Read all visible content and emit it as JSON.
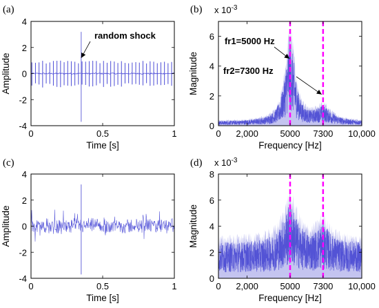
{
  "chart_data": [
    {
      "panel": "(a)",
      "type": "line",
      "xlabel": "Time [s]",
      "ylabel": "Amplitude",
      "xlim": [
        0,
        1
      ],
      "ylim": [
        -4,
        4
      ],
      "xticks": [
        0,
        0.5,
        1
      ],
      "xtick_labels": [
        "0",
        "0.5",
        "1"
      ],
      "yticks": [
        -4,
        -2,
        0,
        2,
        4
      ],
      "ytick_labels": [
        "-4",
        "-2",
        "0",
        "2",
        "4"
      ],
      "series": [
        {
          "impulse_period_s": 0.025,
          "impulse_amplitude": 0.9,
          "noise_amplitude": 0.05,
          "shock": {
            "x": 0.35,
            "max": 3.2,
            "min": -3.7
          }
        }
      ],
      "annotations": [
        {
          "text": "random shock",
          "target_x": 0.35,
          "target_y": 1.2
        }
      ],
      "color": "#4b4bd6"
    },
    {
      "panel": "(b)",
      "type": "line",
      "xlabel": "Frequency [Hz]",
      "ylabel": "Magnitude",
      "scale_label": "x 10",
      "scale_exp": "-3",
      "xlim": [
        0,
        10000
      ],
      "ylim": [
        0,
        7
      ],
      "xticks": [
        0,
        2000,
        5000,
        7300,
        10000
      ],
      "xtick_labels": [
        "0",
        "2,000",
        "5000",
        "7300",
        "10,000"
      ],
      "yticks": [
        0,
        2,
        4,
        6
      ],
      "ytick_labels": [
        "0",
        "2",
        "4",
        "6"
      ],
      "series": [
        {
          "envelope_peaks": [
            {
              "x": 5000,
              "y": 6.3,
              "width": 420
            },
            {
              "x": 7300,
              "y": 1.3,
              "width": 700
            }
          ],
          "baseline": 0.3
        }
      ],
      "markers": [
        5000,
        7300
      ],
      "annotations": [
        {
          "text": "fr1=5000 Hz",
          "target_x": 4950,
          "target_y": 4.5
        },
        {
          "text": "fr2=7300 Hz",
          "target_x": 7200,
          "target_y": 2.1
        }
      ],
      "colors": {
        "dark": "#4040d0",
        "light": "#c4c4f0",
        "marker": "#ff00ff"
      }
    },
    {
      "panel": "(c)",
      "type": "line",
      "xlabel": "Time [s]",
      "ylabel": "Amplitude",
      "xlim": [
        0,
        1
      ],
      "ylim": [
        -4,
        4
      ],
      "xticks": [
        0,
        0.5,
        1
      ],
      "xtick_labels": [
        "0",
        "0.5",
        "1"
      ],
      "yticks": [
        -4,
        -2,
        0,
        2,
        4
      ],
      "ytick_labels": [
        "-4",
        "-2",
        "0",
        "2",
        "4"
      ],
      "series": [
        {
          "noise_amplitude": 0.7,
          "spike_amplitude": 1.3,
          "shock": {
            "x": 0.35,
            "max": 3.2,
            "min": -3.7
          }
        }
      ],
      "color": "#4b4bd6"
    },
    {
      "panel": "(d)",
      "type": "line",
      "xlabel": "Frequency [Hz]",
      "ylabel": "Magnitude",
      "scale_label": "x 10",
      "scale_exp": "-3",
      "xlim": [
        0,
        10000
      ],
      "ylim": [
        0,
        8
      ],
      "xticks": [
        0,
        2000,
        5000,
        7300,
        10000
      ],
      "xtick_labels": [
        "0",
        "2,000",
        "5000",
        "7300",
        "10,000"
      ],
      "yticks": [
        0,
        2,
        4,
        6,
        8
      ],
      "ytick_labels": [
        "0",
        "2",
        "4",
        "6",
        "8"
      ],
      "series": [
        {
          "envelope_peaks": [
            {
              "x": 5000,
              "y": 6.2,
              "width": 600
            },
            {
              "x": 7300,
              "y": 4.5,
              "width": 500
            }
          ],
          "baseline": 3.0
        }
      ],
      "markers": [
        5000,
        7300
      ],
      "colors": {
        "dark": "#4040d0",
        "light": "#c4c4f0",
        "marker": "#ff00ff"
      }
    }
  ]
}
